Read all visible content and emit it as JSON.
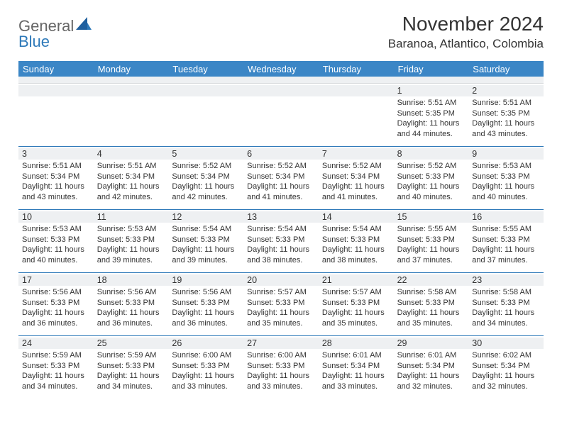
{
  "brand": {
    "part1": "General",
    "part2": "Blue"
  },
  "title": {
    "month": "November 2024",
    "location": "Baranoa, Atlantico, Colombia"
  },
  "dow": [
    "Sunday",
    "Monday",
    "Tuesday",
    "Wednesday",
    "Thursday",
    "Friday",
    "Saturday"
  ],
  "colors": {
    "header_bg": "#3b86c6",
    "rule": "#2e79b9",
    "stripe": "#eef0f2"
  },
  "weeks": [
    [
      {
        "n": "",
        "t": ""
      },
      {
        "n": "",
        "t": ""
      },
      {
        "n": "",
        "t": ""
      },
      {
        "n": "",
        "t": ""
      },
      {
        "n": "",
        "t": ""
      },
      {
        "n": "1",
        "t": "Sunrise: 5:51 AM\nSunset: 5:35 PM\nDaylight: 11 hours and 44 minutes."
      },
      {
        "n": "2",
        "t": "Sunrise: 5:51 AM\nSunset: 5:35 PM\nDaylight: 11 hours and 43 minutes."
      }
    ],
    [
      {
        "n": "3",
        "t": "Sunrise: 5:51 AM\nSunset: 5:34 PM\nDaylight: 11 hours and 43 minutes."
      },
      {
        "n": "4",
        "t": "Sunrise: 5:51 AM\nSunset: 5:34 PM\nDaylight: 11 hours and 42 minutes."
      },
      {
        "n": "5",
        "t": "Sunrise: 5:52 AM\nSunset: 5:34 PM\nDaylight: 11 hours and 42 minutes."
      },
      {
        "n": "6",
        "t": "Sunrise: 5:52 AM\nSunset: 5:34 PM\nDaylight: 11 hours and 41 minutes."
      },
      {
        "n": "7",
        "t": "Sunrise: 5:52 AM\nSunset: 5:34 PM\nDaylight: 11 hours and 41 minutes."
      },
      {
        "n": "8",
        "t": "Sunrise: 5:52 AM\nSunset: 5:33 PM\nDaylight: 11 hours and 40 minutes."
      },
      {
        "n": "9",
        "t": "Sunrise: 5:53 AM\nSunset: 5:33 PM\nDaylight: 11 hours and 40 minutes."
      }
    ],
    [
      {
        "n": "10",
        "t": "Sunrise: 5:53 AM\nSunset: 5:33 PM\nDaylight: 11 hours and 40 minutes."
      },
      {
        "n": "11",
        "t": "Sunrise: 5:53 AM\nSunset: 5:33 PM\nDaylight: 11 hours and 39 minutes."
      },
      {
        "n": "12",
        "t": "Sunrise: 5:54 AM\nSunset: 5:33 PM\nDaylight: 11 hours and 39 minutes."
      },
      {
        "n": "13",
        "t": "Sunrise: 5:54 AM\nSunset: 5:33 PM\nDaylight: 11 hours and 38 minutes."
      },
      {
        "n": "14",
        "t": "Sunrise: 5:54 AM\nSunset: 5:33 PM\nDaylight: 11 hours and 38 minutes."
      },
      {
        "n": "15",
        "t": "Sunrise: 5:55 AM\nSunset: 5:33 PM\nDaylight: 11 hours and 37 minutes."
      },
      {
        "n": "16",
        "t": "Sunrise: 5:55 AM\nSunset: 5:33 PM\nDaylight: 11 hours and 37 minutes."
      }
    ],
    [
      {
        "n": "17",
        "t": "Sunrise: 5:56 AM\nSunset: 5:33 PM\nDaylight: 11 hours and 36 minutes."
      },
      {
        "n": "18",
        "t": "Sunrise: 5:56 AM\nSunset: 5:33 PM\nDaylight: 11 hours and 36 minutes."
      },
      {
        "n": "19",
        "t": "Sunrise: 5:56 AM\nSunset: 5:33 PM\nDaylight: 11 hours and 36 minutes."
      },
      {
        "n": "20",
        "t": "Sunrise: 5:57 AM\nSunset: 5:33 PM\nDaylight: 11 hours and 35 minutes."
      },
      {
        "n": "21",
        "t": "Sunrise: 5:57 AM\nSunset: 5:33 PM\nDaylight: 11 hours and 35 minutes."
      },
      {
        "n": "22",
        "t": "Sunrise: 5:58 AM\nSunset: 5:33 PM\nDaylight: 11 hours and 35 minutes."
      },
      {
        "n": "23",
        "t": "Sunrise: 5:58 AM\nSunset: 5:33 PM\nDaylight: 11 hours and 34 minutes."
      }
    ],
    [
      {
        "n": "24",
        "t": "Sunrise: 5:59 AM\nSunset: 5:33 PM\nDaylight: 11 hours and 34 minutes."
      },
      {
        "n": "25",
        "t": "Sunrise: 5:59 AM\nSunset: 5:33 PM\nDaylight: 11 hours and 34 minutes."
      },
      {
        "n": "26",
        "t": "Sunrise: 6:00 AM\nSunset: 5:33 PM\nDaylight: 11 hours and 33 minutes."
      },
      {
        "n": "27",
        "t": "Sunrise: 6:00 AM\nSunset: 5:33 PM\nDaylight: 11 hours and 33 minutes."
      },
      {
        "n": "28",
        "t": "Sunrise: 6:01 AM\nSunset: 5:34 PM\nDaylight: 11 hours and 33 minutes."
      },
      {
        "n": "29",
        "t": "Sunrise: 6:01 AM\nSunset: 5:34 PM\nDaylight: 11 hours and 32 minutes."
      },
      {
        "n": "30",
        "t": "Sunrise: 6:02 AM\nSunset: 5:34 PM\nDaylight: 11 hours and 32 minutes."
      }
    ]
  ]
}
